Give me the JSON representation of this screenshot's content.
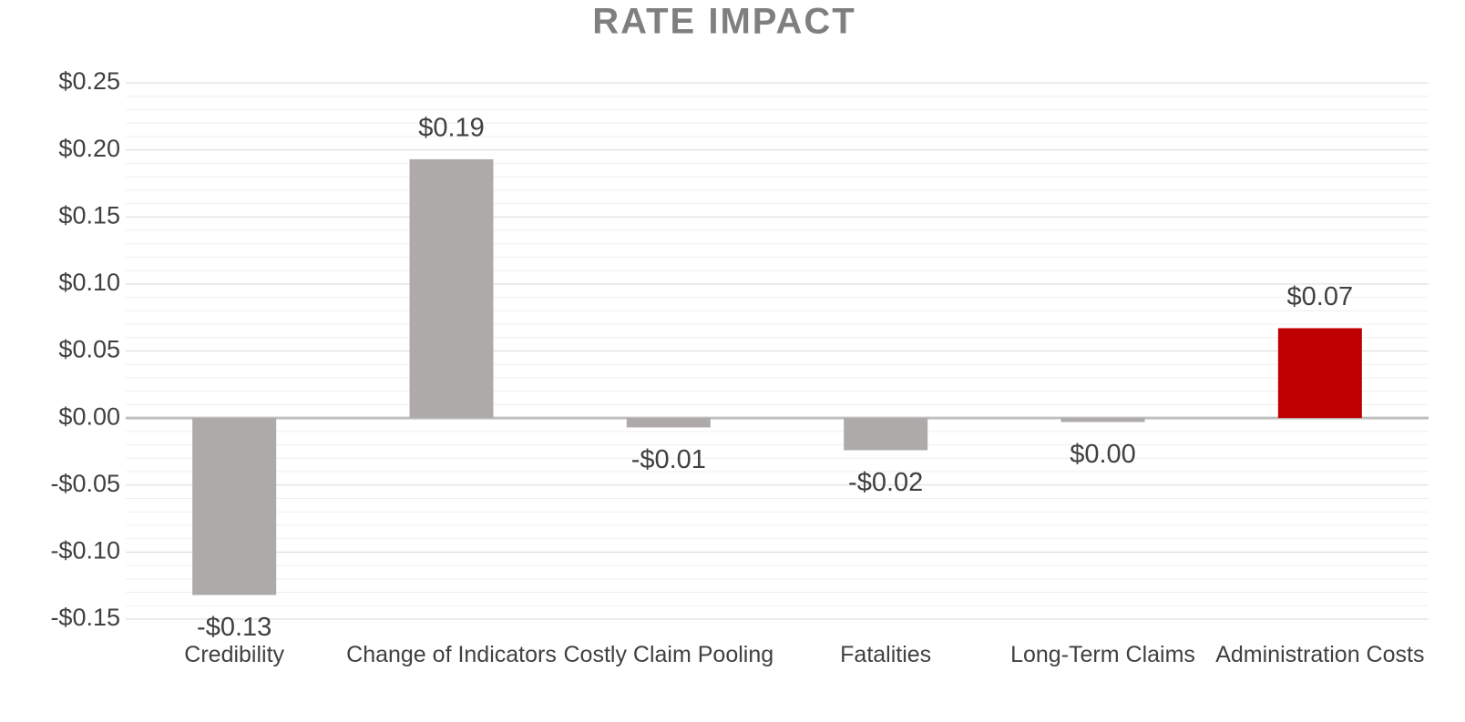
{
  "chart_data": {
    "type": "bar",
    "title": "RATE IMPACT",
    "categories": [
      "Credibility",
      "Change of Indicators",
      "Costly Claim Pooling",
      "Fatalities",
      "Long-Term Claims",
      "Administration Costs"
    ],
    "values": [
      -0.132,
      0.193,
      -0.007,
      -0.024,
      -0.003,
      0.067
    ],
    "value_labels": [
      "-$0.13",
      "$0.19",
      "-$0.01",
      "-$0.02",
      "$0.00",
      "$0.07"
    ],
    "colors": [
      "#aeaaa9",
      "#aeaaa9",
      "#aeaaa9",
      "#aeaaa9",
      "#aeaaa9",
      "#c00000"
    ],
    "ylim": [
      -0.15,
      0.25
    ],
    "yticks": [
      {
        "value": -0.15,
        "label": "-$0.15"
      },
      {
        "value": -0.1,
        "label": "-$0.10"
      },
      {
        "value": -0.05,
        "label": "-$0.05"
      },
      {
        "value": 0,
        "label": "$0.00"
      },
      {
        "value": 0.05,
        "label": "$0.05"
      },
      {
        "value": 0.1,
        "label": "$0.10"
      },
      {
        "value": 0.15,
        "label": "$0.15"
      },
      {
        "value": 0.2,
        "label": "$0.20"
      },
      {
        "value": 0.25,
        "label": "$0.25"
      }
    ],
    "grid": true
  }
}
